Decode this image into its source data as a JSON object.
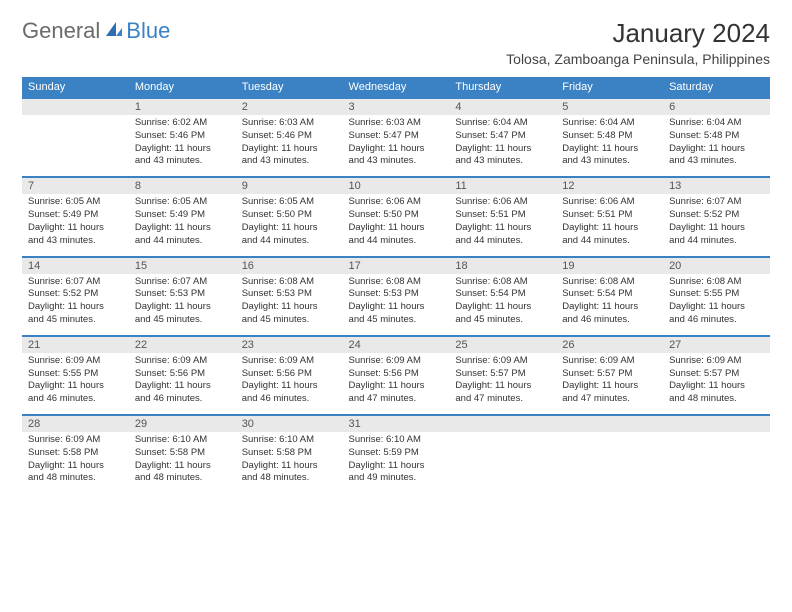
{
  "brand": {
    "part1": "General",
    "part2": "Blue"
  },
  "title": "January 2024",
  "location": "Tolosa, Zamboanga Peninsula, Philippines",
  "colors": {
    "header_bg": "#3b82c4",
    "header_text": "#ffffff",
    "daynum_bg": "#e9e9e9",
    "text": "#333333",
    "brand_gray": "#6b6b6b",
    "brand_blue": "#3b82c4"
  },
  "day_names": [
    "Sunday",
    "Monday",
    "Tuesday",
    "Wednesday",
    "Thursday",
    "Friday",
    "Saturday"
  ],
  "weeks": [
    {
      "nums": [
        "",
        "1",
        "2",
        "3",
        "4",
        "5",
        "6"
      ],
      "cells": [
        null,
        {
          "sunrise": "Sunrise: 6:02 AM",
          "sunset": "Sunset: 5:46 PM",
          "day1": "Daylight: 11 hours",
          "day2": "and 43 minutes."
        },
        {
          "sunrise": "Sunrise: 6:03 AM",
          "sunset": "Sunset: 5:46 PM",
          "day1": "Daylight: 11 hours",
          "day2": "and 43 minutes."
        },
        {
          "sunrise": "Sunrise: 6:03 AM",
          "sunset": "Sunset: 5:47 PM",
          "day1": "Daylight: 11 hours",
          "day2": "and 43 minutes."
        },
        {
          "sunrise": "Sunrise: 6:04 AM",
          "sunset": "Sunset: 5:47 PM",
          "day1": "Daylight: 11 hours",
          "day2": "and 43 minutes."
        },
        {
          "sunrise": "Sunrise: 6:04 AM",
          "sunset": "Sunset: 5:48 PM",
          "day1": "Daylight: 11 hours",
          "day2": "and 43 minutes."
        },
        {
          "sunrise": "Sunrise: 6:04 AM",
          "sunset": "Sunset: 5:48 PM",
          "day1": "Daylight: 11 hours",
          "day2": "and 43 minutes."
        }
      ]
    },
    {
      "nums": [
        "7",
        "8",
        "9",
        "10",
        "11",
        "12",
        "13"
      ],
      "cells": [
        {
          "sunrise": "Sunrise: 6:05 AM",
          "sunset": "Sunset: 5:49 PM",
          "day1": "Daylight: 11 hours",
          "day2": "and 43 minutes."
        },
        {
          "sunrise": "Sunrise: 6:05 AM",
          "sunset": "Sunset: 5:49 PM",
          "day1": "Daylight: 11 hours",
          "day2": "and 44 minutes."
        },
        {
          "sunrise": "Sunrise: 6:05 AM",
          "sunset": "Sunset: 5:50 PM",
          "day1": "Daylight: 11 hours",
          "day2": "and 44 minutes."
        },
        {
          "sunrise": "Sunrise: 6:06 AM",
          "sunset": "Sunset: 5:50 PM",
          "day1": "Daylight: 11 hours",
          "day2": "and 44 minutes."
        },
        {
          "sunrise": "Sunrise: 6:06 AM",
          "sunset": "Sunset: 5:51 PM",
          "day1": "Daylight: 11 hours",
          "day2": "and 44 minutes."
        },
        {
          "sunrise": "Sunrise: 6:06 AM",
          "sunset": "Sunset: 5:51 PM",
          "day1": "Daylight: 11 hours",
          "day2": "and 44 minutes."
        },
        {
          "sunrise": "Sunrise: 6:07 AM",
          "sunset": "Sunset: 5:52 PM",
          "day1": "Daylight: 11 hours",
          "day2": "and 44 minutes."
        }
      ]
    },
    {
      "nums": [
        "14",
        "15",
        "16",
        "17",
        "18",
        "19",
        "20"
      ],
      "cells": [
        {
          "sunrise": "Sunrise: 6:07 AM",
          "sunset": "Sunset: 5:52 PM",
          "day1": "Daylight: 11 hours",
          "day2": "and 45 minutes."
        },
        {
          "sunrise": "Sunrise: 6:07 AM",
          "sunset": "Sunset: 5:53 PM",
          "day1": "Daylight: 11 hours",
          "day2": "and 45 minutes."
        },
        {
          "sunrise": "Sunrise: 6:08 AM",
          "sunset": "Sunset: 5:53 PM",
          "day1": "Daylight: 11 hours",
          "day2": "and 45 minutes."
        },
        {
          "sunrise": "Sunrise: 6:08 AM",
          "sunset": "Sunset: 5:53 PM",
          "day1": "Daylight: 11 hours",
          "day2": "and 45 minutes."
        },
        {
          "sunrise": "Sunrise: 6:08 AM",
          "sunset": "Sunset: 5:54 PM",
          "day1": "Daylight: 11 hours",
          "day2": "and 45 minutes."
        },
        {
          "sunrise": "Sunrise: 6:08 AM",
          "sunset": "Sunset: 5:54 PM",
          "day1": "Daylight: 11 hours",
          "day2": "and 46 minutes."
        },
        {
          "sunrise": "Sunrise: 6:08 AM",
          "sunset": "Sunset: 5:55 PM",
          "day1": "Daylight: 11 hours",
          "day2": "and 46 minutes."
        }
      ]
    },
    {
      "nums": [
        "21",
        "22",
        "23",
        "24",
        "25",
        "26",
        "27"
      ],
      "cells": [
        {
          "sunrise": "Sunrise: 6:09 AM",
          "sunset": "Sunset: 5:55 PM",
          "day1": "Daylight: 11 hours",
          "day2": "and 46 minutes."
        },
        {
          "sunrise": "Sunrise: 6:09 AM",
          "sunset": "Sunset: 5:56 PM",
          "day1": "Daylight: 11 hours",
          "day2": "and 46 minutes."
        },
        {
          "sunrise": "Sunrise: 6:09 AM",
          "sunset": "Sunset: 5:56 PM",
          "day1": "Daylight: 11 hours",
          "day2": "and 46 minutes."
        },
        {
          "sunrise": "Sunrise: 6:09 AM",
          "sunset": "Sunset: 5:56 PM",
          "day1": "Daylight: 11 hours",
          "day2": "and 47 minutes."
        },
        {
          "sunrise": "Sunrise: 6:09 AM",
          "sunset": "Sunset: 5:57 PM",
          "day1": "Daylight: 11 hours",
          "day2": "and 47 minutes."
        },
        {
          "sunrise": "Sunrise: 6:09 AM",
          "sunset": "Sunset: 5:57 PM",
          "day1": "Daylight: 11 hours",
          "day2": "and 47 minutes."
        },
        {
          "sunrise": "Sunrise: 6:09 AM",
          "sunset": "Sunset: 5:57 PM",
          "day1": "Daylight: 11 hours",
          "day2": "and 48 minutes."
        }
      ]
    },
    {
      "nums": [
        "28",
        "29",
        "30",
        "31",
        "",
        "",
        ""
      ],
      "cells": [
        {
          "sunrise": "Sunrise: 6:09 AM",
          "sunset": "Sunset: 5:58 PM",
          "day1": "Daylight: 11 hours",
          "day2": "and 48 minutes."
        },
        {
          "sunrise": "Sunrise: 6:10 AM",
          "sunset": "Sunset: 5:58 PM",
          "day1": "Daylight: 11 hours",
          "day2": "and 48 minutes."
        },
        {
          "sunrise": "Sunrise: 6:10 AM",
          "sunset": "Sunset: 5:58 PM",
          "day1": "Daylight: 11 hours",
          "day2": "and 48 minutes."
        },
        {
          "sunrise": "Sunrise: 6:10 AM",
          "sunset": "Sunset: 5:59 PM",
          "day1": "Daylight: 11 hours",
          "day2": "and 49 minutes."
        },
        null,
        null,
        null
      ]
    }
  ]
}
